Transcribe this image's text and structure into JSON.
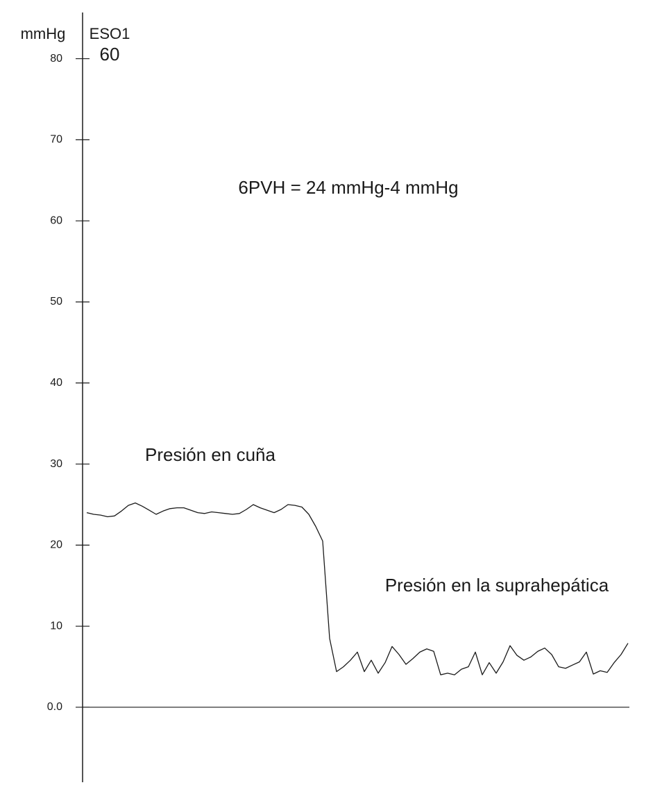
{
  "chart_data": {
    "type": "line",
    "y_label": "mmHg",
    "channel": "ESO1",
    "channel_value": "60",
    "annotations": [
      "6PVH = 24 mmHg-4 mmHg",
      "Presión en cuña",
      "Presión en la suprahepática"
    ],
    "color": "#1a1a1a",
    "ylim": [
      -9.25,
      85.7
    ],
    "yticks": [
      {
        "value": 0,
        "label": "0.0"
      },
      10,
      20,
      30,
      40,
      50,
      60,
      70,
      80
    ],
    "values": [
      24.0,
      23.8,
      23.7,
      23.5,
      23.6,
      24.2,
      24.9,
      25.2,
      24.8,
      24.3,
      23.8,
      24.2,
      24.5,
      24.6,
      24.6,
      24.3,
      24.0,
      23.9,
      24.1,
      24.0,
      23.9,
      23.8,
      23.9,
      24.4,
      25.0,
      24.6,
      24.3,
      24.0,
      24.4,
      25.0,
      24.9,
      24.7,
      23.8,
      22.3,
      20.5,
      8.5,
      4.4,
      5.0,
      5.8,
      6.8,
      4.4,
      5.8,
      4.2,
      5.5,
      7.5,
      6.5,
      5.3,
      6.0,
      6.8,
      7.2,
      6.9,
      4.0,
      4.2,
      4.0,
      4.7,
      5.0,
      6.8,
      4.0,
      5.5,
      4.2,
      5.6,
      7.6,
      6.4,
      5.8,
      6.2,
      6.9,
      7.3,
      6.5,
      5.0,
      4.8,
      5.2,
      5.6,
      6.8,
      4.1,
      4.5,
      4.3,
      5.5,
      6.5,
      7.9
    ]
  }
}
